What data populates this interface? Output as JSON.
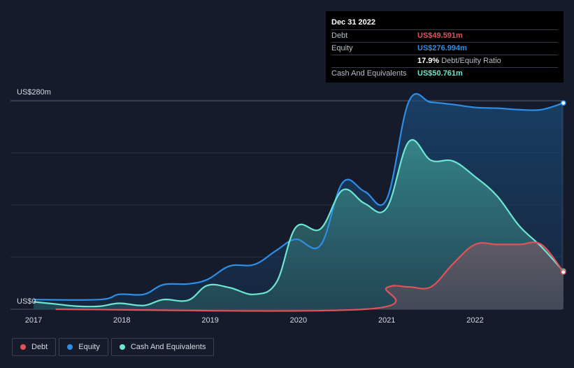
{
  "tooltip": {
    "date": "Dec 31 2022",
    "rows": [
      {
        "label": "Debt",
        "value": "US$49.591m",
        "color": "#e0535a"
      },
      {
        "label": "Equity",
        "value": "US$276.994m",
        "color": "#2e8ee6"
      },
      {
        "label": "",
        "value": "17.9%",
        "suffix": "Debt/Equity Ratio"
      },
      {
        "label": "Cash And Equivalents",
        "value": "US$50.761m",
        "color": "#6de6d2"
      }
    ]
  },
  "legend": [
    {
      "label": "Debt",
      "color": "#e0535a"
    },
    {
      "label": "Equity",
      "color": "#2e8ee6"
    },
    {
      "label": "Cash And Equivalents",
      "color": "#6de6d2"
    }
  ],
  "chart_data": {
    "type": "area",
    "title": "",
    "xlabel": "",
    "ylabel": "",
    "y_top_label": "US$280m",
    "y_bottom_label": "US$0",
    "ylim": [
      0,
      280
    ],
    "xlim": [
      2017.0,
      2023.0
    ],
    "x_ticks": [
      2017,
      2018,
      2019,
      2020,
      2021,
      2022
    ],
    "x_tick_labels": [
      "2017",
      "2018",
      "2019",
      "2020",
      "2021",
      "2022"
    ],
    "series": [
      {
        "name": "Equity",
        "color": "#2e8ee6",
        "points": [
          [
            2017.0,
            13
          ],
          [
            2017.75,
            13
          ],
          [
            2017.97,
            20
          ],
          [
            2018.25,
            20
          ],
          [
            2018.47,
            33
          ],
          [
            2018.75,
            34
          ],
          [
            2018.97,
            40
          ],
          [
            2019.22,
            58
          ],
          [
            2019.5,
            60
          ],
          [
            2019.75,
            79
          ],
          [
            2019.97,
            94
          ],
          [
            2020.25,
            86
          ],
          [
            2020.5,
            170
          ],
          [
            2020.75,
            158
          ],
          [
            2021.0,
            148
          ],
          [
            2021.25,
            279
          ],
          [
            2021.5,
            278
          ],
          [
            2021.75,
            275
          ],
          [
            2022.0,
            271
          ],
          [
            2022.25,
            270
          ],
          [
            2022.5,
            268
          ],
          [
            2022.75,
            268
          ],
          [
            2023.0,
            277
          ]
        ]
      },
      {
        "name": "Cash And Equivalents",
        "color": "#6de6d2",
        "points": [
          [
            2017.0,
            10
          ],
          [
            2017.25,
            7
          ],
          [
            2017.5,
            4
          ],
          [
            2017.75,
            4
          ],
          [
            2017.97,
            8
          ],
          [
            2018.25,
            5
          ],
          [
            2018.47,
            13
          ],
          [
            2018.75,
            12
          ],
          [
            2018.97,
            32
          ],
          [
            2019.22,
            29
          ],
          [
            2019.5,
            20
          ],
          [
            2019.75,
            36
          ],
          [
            2019.97,
            110
          ],
          [
            2020.25,
            108
          ],
          [
            2020.5,
            160
          ],
          [
            2020.75,
            142
          ],
          [
            2021.0,
            136
          ],
          [
            2021.25,
            225
          ],
          [
            2021.5,
            200
          ],
          [
            2021.75,
            199
          ],
          [
            2022.0,
            178
          ],
          [
            2022.25,
            152
          ],
          [
            2022.5,
            112
          ],
          [
            2022.75,
            84
          ],
          [
            2023.0,
            51
          ]
        ]
      },
      {
        "name": "Debt",
        "color": "#e0535a",
        "points": [
          [
            2017.25,
            0
          ],
          [
            2020.75,
            0
          ],
          [
            2021.0,
            29
          ],
          [
            2021.25,
            30
          ],
          [
            2021.5,
            30
          ],
          [
            2021.75,
            61
          ],
          [
            2022.0,
            87
          ],
          [
            2022.25,
            87
          ],
          [
            2022.5,
            87
          ],
          [
            2022.75,
            87
          ],
          [
            2023.0,
            50
          ]
        ]
      }
    ]
  }
}
